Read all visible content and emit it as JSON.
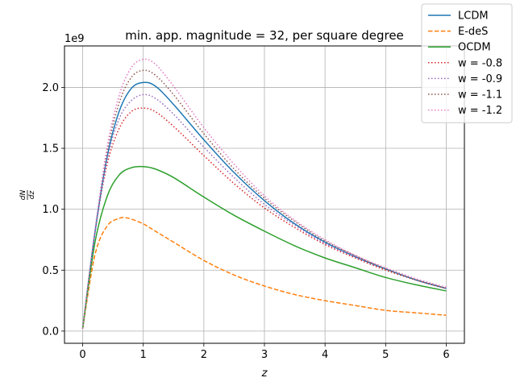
{
  "chart_data": {
    "type": "line",
    "title": "min. app. magnitude = 32, per square degree",
    "xlabel": "z",
    "ylabel": "dN/dz",
    "ylabel_num": "dN",
    "ylabel_den": "dz",
    "y_offset_label": "1e9",
    "xlim": [
      -0.3,
      6.3
    ],
    "ylim": [
      -0.1,
      2.34
    ],
    "xticks": [
      0,
      1,
      2,
      3,
      4,
      5,
      6
    ],
    "xtick_labels": [
      "0",
      "1",
      "2",
      "3",
      "4",
      "5",
      "6"
    ],
    "yticks": [
      0.0,
      0.5,
      1.0,
      1.5,
      2.0
    ],
    "ytick_labels": [
      "0.0",
      "0.5",
      "1.0",
      "1.5",
      "2.0"
    ],
    "grid": true,
    "legend_position": "top-right",
    "series": [
      {
        "name": "LCDM",
        "color": "#1f77b4",
        "style": "solid",
        "x": [
          0,
          0.2,
          0.4,
          0.6,
          0.8,
          1.0,
          1.2,
          1.5,
          2.0,
          2.5,
          3.0,
          3.5,
          4.0,
          4.5,
          5.0,
          5.5,
          6.0
        ],
        "y": [
          0.02,
          0.8,
          1.42,
          1.8,
          1.99,
          2.04,
          2.01,
          1.86,
          1.57,
          1.3,
          1.07,
          0.88,
          0.73,
          0.61,
          0.51,
          0.42,
          0.35
        ]
      },
      {
        "name": "E-deS",
        "color": "#ff7f0e",
        "style": "dashed",
        "x": [
          0,
          0.2,
          0.4,
          0.6,
          0.7,
          0.8,
          1.0,
          1.2,
          1.5,
          2.0,
          2.5,
          3.0,
          3.5,
          4.0,
          4.5,
          5.0,
          5.5,
          6.0
        ],
        "y": [
          0.02,
          0.62,
          0.86,
          0.925,
          0.93,
          0.92,
          0.88,
          0.82,
          0.73,
          0.58,
          0.46,
          0.37,
          0.3,
          0.25,
          0.21,
          0.17,
          0.15,
          0.13
        ]
      },
      {
        "name": "OCDM",
        "color": "#2ca02c",
        "style": "solid",
        "x": [
          0,
          0.2,
          0.4,
          0.6,
          0.8,
          1.0,
          1.2,
          1.5,
          2.0,
          2.5,
          3.0,
          3.5,
          4.0,
          4.5,
          5.0,
          5.5,
          6.0
        ],
        "y": [
          0.02,
          0.72,
          1.1,
          1.28,
          1.34,
          1.35,
          1.33,
          1.26,
          1.1,
          0.95,
          0.82,
          0.7,
          0.6,
          0.52,
          0.44,
          0.38,
          0.33
        ]
      },
      {
        "name": "w = -0.8",
        "color": "#d62728",
        "style": "dotted",
        "x": [
          0,
          0.2,
          0.4,
          0.6,
          0.8,
          1.0,
          1.2,
          1.5,
          2.0,
          2.5,
          3.0,
          3.5,
          4.0,
          4.5,
          5.0,
          5.5,
          6.0
        ],
        "y": [
          0.02,
          0.8,
          1.36,
          1.66,
          1.8,
          1.83,
          1.8,
          1.68,
          1.44,
          1.21,
          1.01,
          0.85,
          0.71,
          0.6,
          0.5,
          0.42,
          0.35
        ]
      },
      {
        "name": "w = -0.9",
        "color": "#9467bd",
        "style": "dotted",
        "x": [
          0,
          0.2,
          0.4,
          0.6,
          0.8,
          1.0,
          1.2,
          1.5,
          2.0,
          2.5,
          3.0,
          3.5,
          4.0,
          4.5,
          5.0,
          5.5,
          6.0
        ],
        "y": [
          0.02,
          0.8,
          1.4,
          1.74,
          1.89,
          1.94,
          1.91,
          1.78,
          1.51,
          1.26,
          1.04,
          0.87,
          0.72,
          0.61,
          0.51,
          0.42,
          0.35
        ]
      },
      {
        "name": "w = -1.1",
        "color": "#8c564b",
        "style": "dotted",
        "x": [
          0,
          0.2,
          0.4,
          0.6,
          0.8,
          1.0,
          1.2,
          1.5,
          2.0,
          2.5,
          3.0,
          3.5,
          4.0,
          4.5,
          5.0,
          5.5,
          6.0
        ],
        "y": [
          0.02,
          0.81,
          1.46,
          1.87,
          2.08,
          2.14,
          2.1,
          1.94,
          1.62,
          1.33,
          1.09,
          0.9,
          0.74,
          0.62,
          0.51,
          0.42,
          0.35
        ]
      },
      {
        "name": "w = -1.2",
        "color": "#e377c2",
        "style": "dotted",
        "x": [
          0,
          0.2,
          0.4,
          0.6,
          0.8,
          1.0,
          1.2,
          1.5,
          2.0,
          2.5,
          3.0,
          3.5,
          4.0,
          4.5,
          5.0,
          5.5,
          6.0
        ],
        "y": [
          0.02,
          0.82,
          1.5,
          1.93,
          2.16,
          2.23,
          2.19,
          2.01,
          1.67,
          1.37,
          1.11,
          0.91,
          0.75,
          0.62,
          0.52,
          0.43,
          0.36
        ]
      }
    ]
  }
}
